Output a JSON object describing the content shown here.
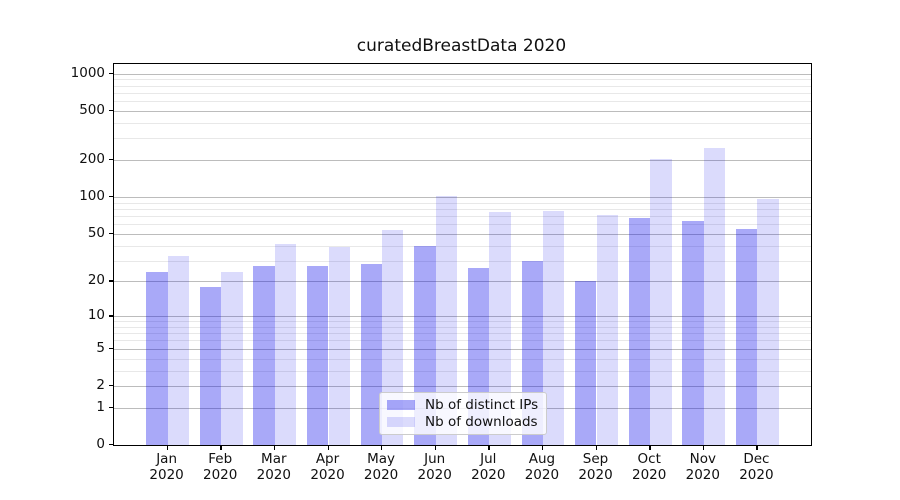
{
  "title": "curatedBreastData 2020",
  "legend": {
    "items": [
      {
        "label": "Nb of distinct IPs",
        "color": "rgba(10,10,235,0.35)"
      },
      {
        "label": "Nb of downloads",
        "color": "rgba(10,10,235,0.145)"
      }
    ],
    "position": "lower center"
  },
  "chart_data": {
    "type": "bar",
    "title": "curatedBreastData 2020",
    "categories": [
      "Jan",
      "Feb",
      "Mar",
      "Apr",
      "May",
      "Jun",
      "Jul",
      "Aug",
      "Sep",
      "Oct",
      "Nov",
      "Dec"
    ],
    "year_label": "2020",
    "series": [
      {
        "name": "Nb of distinct IPs",
        "values": [
          24,
          18,
          27,
          27,
          28,
          40,
          26,
          30,
          20,
          67,
          64,
          55
        ],
        "color": "rgba(10,10,235,0.35)"
      },
      {
        "name": "Nb of downloads",
        "values": [
          33,
          24,
          41,
          39,
          54,
          102,
          75,
          77,
          71,
          203,
          250,
          96
        ],
        "color": "rgba(10,10,235,0.145)"
      }
    ],
    "xlabel": "",
    "ylabel": "",
    "yscale": "log1p",
    "ylim": [
      0,
      1200
    ],
    "yticks": [
      0,
      1,
      2,
      5,
      10,
      20,
      50,
      100,
      200,
      500,
      1000
    ],
    "minor_yticks": [
      3,
      4,
      6,
      7,
      8,
      9,
      30,
      40,
      60,
      70,
      80,
      90,
      300,
      400,
      600,
      700,
      800,
      900
    ],
    "grid": "major+minor horizontal",
    "legend_position": "lower center"
  },
  "colors": {
    "grid_major": "#bcbcbc",
    "grid_minor": "#e8e8e8",
    "axis_frame": "#000000",
    "background": "#ffffff",
    "text": "#111111"
  }
}
